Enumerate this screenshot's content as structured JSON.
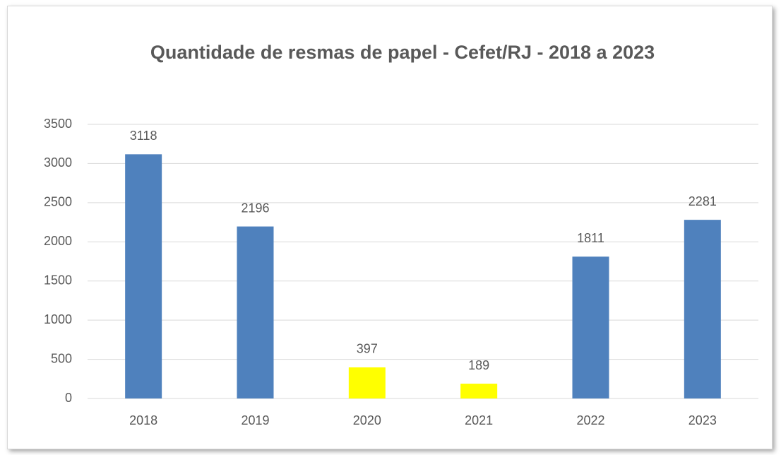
{
  "chart_data": {
    "type": "bar",
    "title": "Quantidade de resmas de papel - Cefet/RJ - 2018 a 2023",
    "categories": [
      "2018",
      "2019",
      "2020",
      "2021",
      "2022",
      "2023"
    ],
    "values": [
      3118,
      2196,
      397,
      189,
      1811,
      2281
    ],
    "colors": [
      "#4f81bd",
      "#4f81bd",
      "#ffff00",
      "#ffff00",
      "#4f81bd",
      "#4f81bd"
    ],
    "ylim": [
      0,
      3500
    ],
    "yticks": [
      0,
      500,
      1000,
      1500,
      2000,
      2500,
      3000,
      3500
    ],
    "grid": true
  }
}
